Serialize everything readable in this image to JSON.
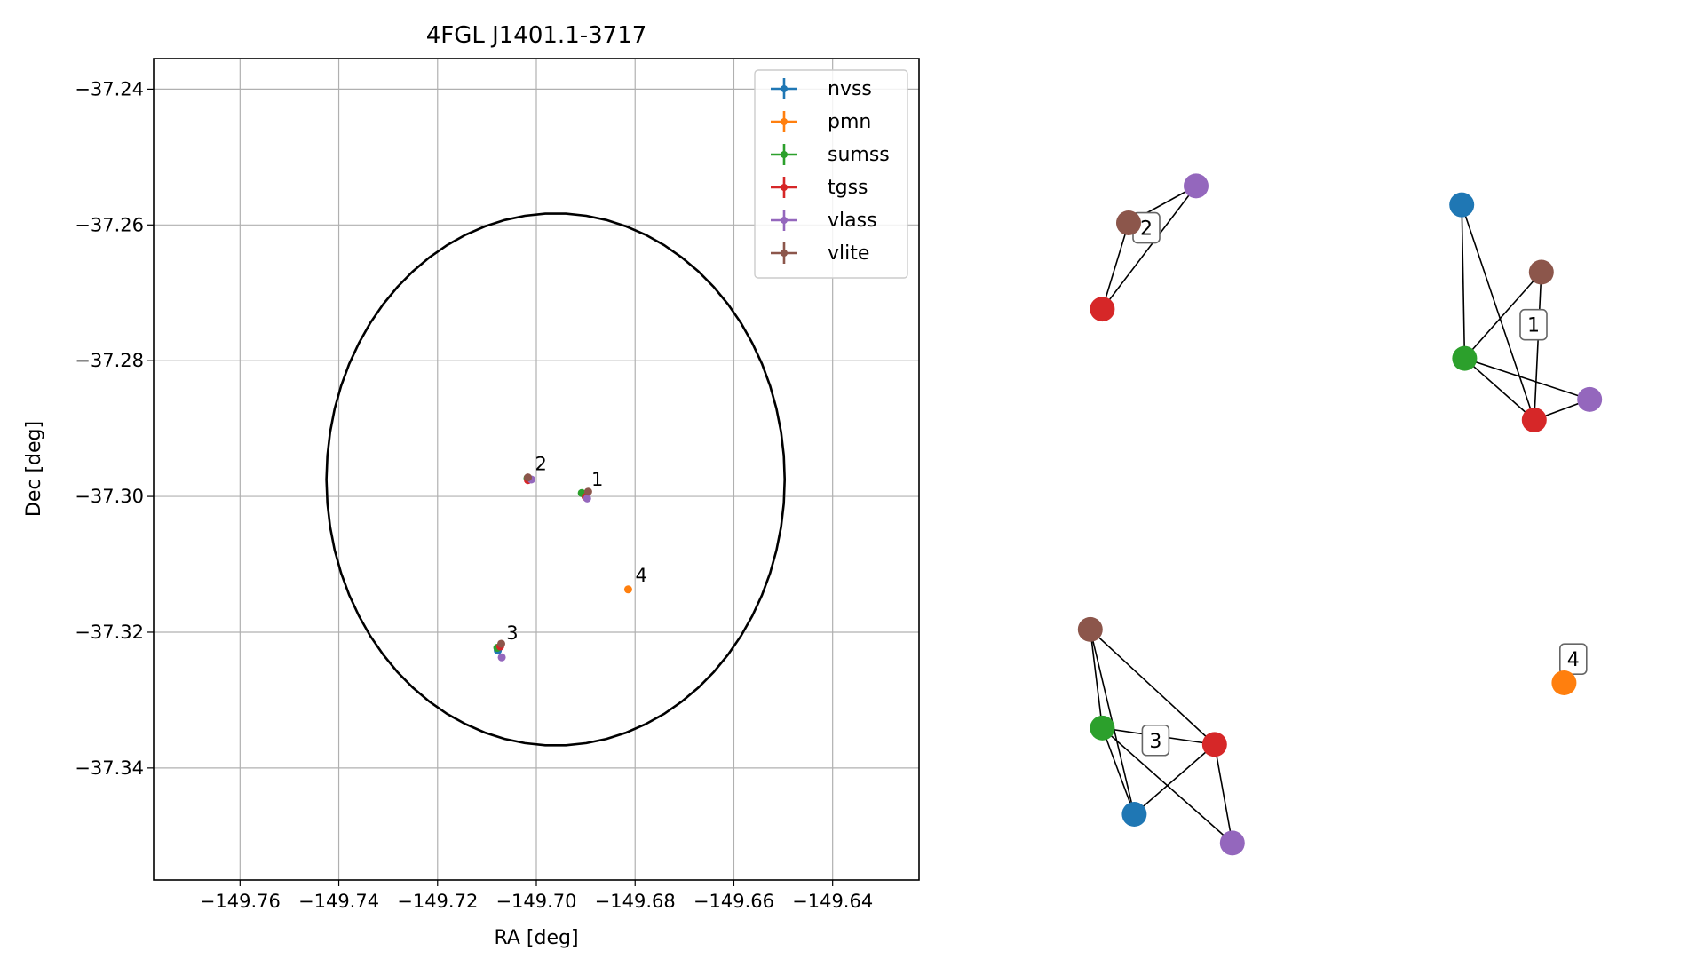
{
  "figure": {
    "scatter_panel_name": "scatter-plot",
    "graph_panel_name": "cluster-graph"
  },
  "chart_data": [
    {
      "type": "scatter",
      "title": "4FGL J1401.1-3717",
      "xlabel": "RA [deg]",
      "ylabel": "Dec [deg]",
      "xlim": [
        -149.7775,
        -149.6225
      ],
      "ylim": [
        -37.3565,
        -37.2355
      ],
      "xticks": [
        -149.76,
        -149.74,
        -149.72,
        -149.7,
        -149.68,
        -149.66,
        -149.64
      ],
      "xtick_labels": [
        "−149.76",
        "−149.74",
        "−149.72",
        "−149.70",
        "−149.68",
        "−149.66",
        "−149.64"
      ],
      "yticks": [
        -37.24,
        -37.26,
        -37.28,
        -37.3,
        -37.32,
        -37.34
      ],
      "ytick_labels": [
        "−37.24",
        "−37.26",
        "−37.28",
        "−37.30",
        "−37.32",
        "−37.34"
      ],
      "grid": true,
      "legend_position": "top-right",
      "legend": [
        {
          "name": "nvss",
          "color": "#1f77b4"
        },
        {
          "name": "pmn",
          "color": "#ff7f0e"
        },
        {
          "name": "sumss",
          "color": "#2ca02c"
        },
        {
          "name": "tgss",
          "color": "#d62728"
        },
        {
          "name": "vlass",
          "color": "#9467bd"
        },
        {
          "name": "vlite",
          "color": "#8c564b"
        }
      ],
      "points": [
        {
          "series": "nvss",
          "ra": -149.7015,
          "dec": -37.2975
        },
        {
          "series": "sumss",
          "ra": -149.7018,
          "dec": -37.2973
        },
        {
          "series": "tgss",
          "ra": -149.7017,
          "dec": -37.2976
        },
        {
          "series": "vlass",
          "ra": -149.701,
          "dec": -37.2975
        },
        {
          "series": "vlite",
          "ra": -149.7017,
          "dec": -37.2972
        },
        {
          "series": "nvss",
          "ra": -149.6902,
          "dec": -37.2998
        },
        {
          "series": "sumss",
          "ra": -149.6908,
          "dec": -37.2995
        },
        {
          "series": "tgss",
          "ra": -149.69,
          "dec": -37.3001
        },
        {
          "series": "vlass",
          "ra": -149.6897,
          "dec": -37.3003
        },
        {
          "series": "vlite",
          "ra": -149.6895,
          "dec": -37.2993
        },
        {
          "series": "nvss",
          "ra": -149.7078,
          "dec": -37.3227
        },
        {
          "series": "sumss",
          "ra": -149.7079,
          "dec": -37.3223
        },
        {
          "series": "tgss",
          "ra": -149.7073,
          "dec": -37.3221
        },
        {
          "series": "vlass",
          "ra": -149.707,
          "dec": -37.3237
        },
        {
          "series": "vlite",
          "ra": -149.7071,
          "dec": -37.3217
        },
        {
          "series": "pmn",
          "ra": -149.6814,
          "dec": -37.3137
        }
      ],
      "labels": [
        {
          "text": "2",
          "ra": -149.7017,
          "dec": -37.2973
        },
        {
          "text": "1",
          "ra": -149.6903,
          "dec": -37.2996
        },
        {
          "text": "4",
          "ra": -149.6814,
          "dec": -37.3137
        },
        {
          "text": "3",
          "ra": -149.7075,
          "dec": -37.3222
        }
      ],
      "ellipse": {
        "center_ra": -149.6961,
        "center_dec": -37.2975,
        "radius_ra": 0.0464,
        "radius_dec": 0.0392,
        "color": "#000000"
      }
    },
    {
      "type": "graph",
      "nodes": [
        {
          "id": "c2-vlite",
          "series": "vlite",
          "x": 0.12,
          "y": 0.8
        },
        {
          "id": "c2-vlass",
          "series": "vlass",
          "x": 0.215,
          "y": 0.845
        },
        {
          "id": "c2-tgss",
          "series": "tgss",
          "x": 0.083,
          "y": 0.695
        },
        {
          "id": "c1-nvss",
          "series": "nvss",
          "x": 0.589,
          "y": 0.822
        },
        {
          "id": "c1-vlite",
          "series": "vlite",
          "x": 0.701,
          "y": 0.74
        },
        {
          "id": "c1-sumss",
          "series": "sumss",
          "x": 0.593,
          "y": 0.635
        },
        {
          "id": "c1-vlass",
          "series": "vlass",
          "x": 0.769,
          "y": 0.585
        },
        {
          "id": "c1-tgss",
          "series": "tgss",
          "x": 0.691,
          "y": 0.56
        },
        {
          "id": "c3-vlite",
          "series": "vlite",
          "x": 0.066,
          "y": 0.305
        },
        {
          "id": "c3-sumss",
          "series": "sumss",
          "x": 0.083,
          "y": 0.185
        },
        {
          "id": "c3-tgss",
          "series": "tgss",
          "x": 0.241,
          "y": 0.165
        },
        {
          "id": "c3-nvss",
          "series": "nvss",
          "x": 0.128,
          "y": 0.08
        },
        {
          "id": "c3-vlass",
          "series": "vlass",
          "x": 0.266,
          "y": 0.045
        },
        {
          "id": "c4-pmn",
          "series": "pmn",
          "x": 0.733,
          "y": 0.24
        }
      ],
      "edges": [
        [
          "c2-vlite",
          "c2-vlass"
        ],
        [
          "c2-vlite",
          "c2-tgss"
        ],
        [
          "c2-tgss",
          "c2-vlass"
        ],
        [
          "c1-nvss",
          "c1-sumss"
        ],
        [
          "c1-nvss",
          "c1-tgss"
        ],
        [
          "c1-vlite",
          "c1-sumss"
        ],
        [
          "c1-vlite",
          "c1-tgss"
        ],
        [
          "c1-sumss",
          "c1-tgss"
        ],
        [
          "c1-sumss",
          "c1-vlass"
        ],
        [
          "c1-tgss",
          "c1-vlass"
        ],
        [
          "c3-vlite",
          "c3-sumss"
        ],
        [
          "c3-vlite",
          "c3-nvss"
        ],
        [
          "c3-vlite",
          "c3-tgss"
        ],
        [
          "c3-sumss",
          "c3-tgss"
        ],
        [
          "c3-sumss",
          "c3-nvss"
        ],
        [
          "c3-sumss",
          "c3-vlass"
        ],
        [
          "c3-nvss",
          "c3-tgss"
        ],
        [
          "c3-tgss",
          "c3-vlass"
        ]
      ],
      "cluster_labels": [
        {
          "text": "2",
          "x": 0.145,
          "y": 0.794
        },
        {
          "text": "1",
          "x": 0.69,
          "y": 0.676
        },
        {
          "text": "3",
          "x": 0.158,
          "y": 0.17
        },
        {
          "text": "4",
          "x": 0.746,
          "y": 0.269
        }
      ]
    }
  ]
}
